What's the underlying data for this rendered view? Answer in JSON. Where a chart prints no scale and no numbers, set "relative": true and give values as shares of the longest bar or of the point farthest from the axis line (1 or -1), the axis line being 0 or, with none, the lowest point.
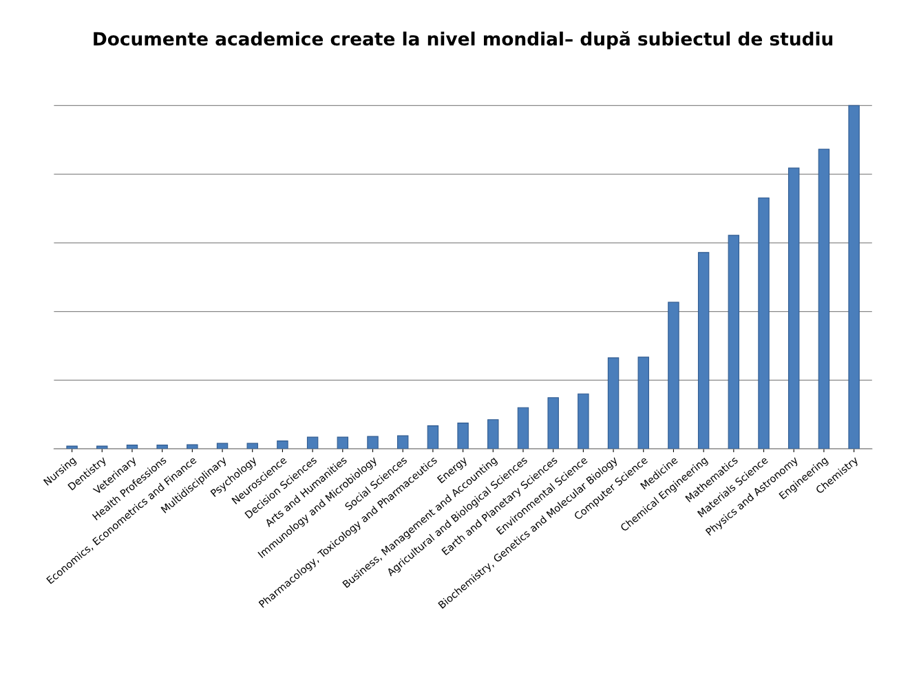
{
  "chart_data": {
    "type": "bar",
    "title": "Documente academice create la nivel mondial– după subiectul de studiu",
    "categories": [
      "Nursing",
      "Dentistry",
      "Veterinary",
      "Health Professions",
      "Economics, Econometrics and Finance",
      "Multidisciplinary",
      "Psychology",
      "Neuroscience",
      "Decision Sciences",
      "Arts and Humanities",
      "Immunology and Microbiology",
      "Social Sciences",
      "Pharmacology, Toxicology and Pharmaceutics",
      "Energy",
      "Business, Management and Accounting",
      "Agricultural and Biological Sciences",
      "Earth and Planetary Sciences",
      "Environmental Science",
      "Biochemistry, Genetics and Molecular Biology",
      "Computer Science",
      "Medicine",
      "Chemical Engineering",
      "Mathematics",
      "Materials Science",
      "Physics and Astronomy",
      "Engineering",
      "Chemistry"
    ],
    "values": [
      0.008,
      0.008,
      0.011,
      0.011,
      0.012,
      0.016,
      0.016,
      0.023,
      0.034,
      0.034,
      0.036,
      0.038,
      0.067,
      0.075,
      0.085,
      0.12,
      0.149,
      0.16,
      0.265,
      0.267,
      0.427,
      0.572,
      0.622,
      0.731,
      0.818,
      0.873,
      1
    ],
    "color": "#4a7ebb",
    "relative": true,
    "grid": "y"
  }
}
